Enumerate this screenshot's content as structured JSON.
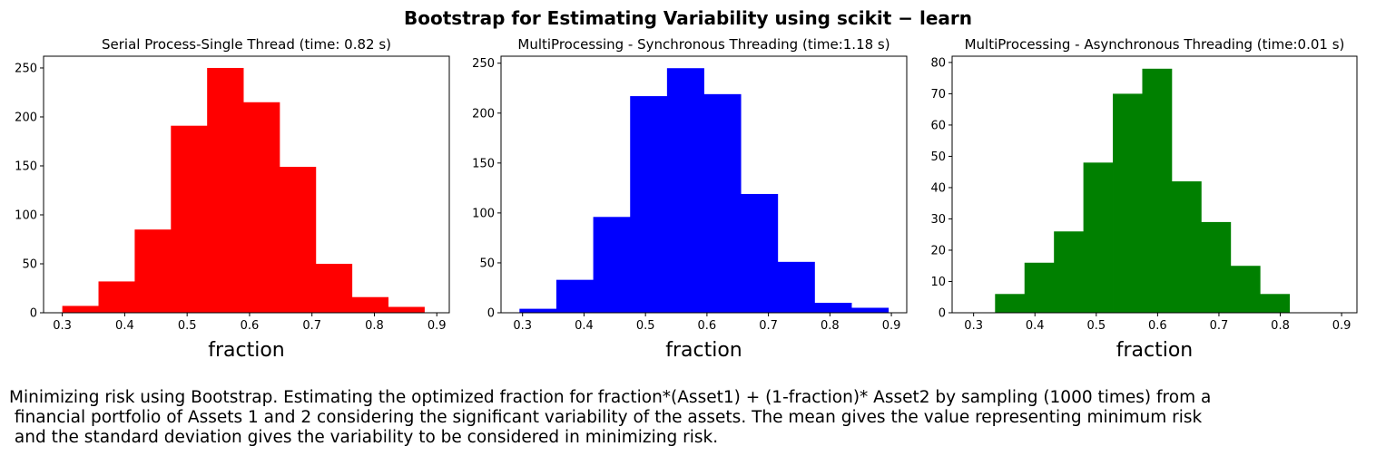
{
  "figure": {
    "suptitle": "Bootstrap for Estimating Variability using scikit − learn",
    "caption_lines": [
      "Minimizing risk using Bootstrap. Estimating the optimized fraction for fraction*(Asset1) + (1-fraction)* Asset2 by sampling (1000 times) from a",
      " financial portfolio of Assets 1 and 2 considering the significant variability of the assets. The mean gives the value representing minimum risk",
      " and the standard deviation gives the variability to be considered in minimizing risk."
    ]
  },
  "chart_data": [
    {
      "type": "bar",
      "subtype": "histogram",
      "title": "Serial Process-Single Thread (time: 0.82 s)",
      "xlabel": "fraction",
      "ylabel": "",
      "color": "#ff0000",
      "bin_edges": [
        0.3,
        0.358,
        0.416,
        0.474,
        0.532,
        0.59,
        0.648,
        0.706,
        0.764,
        0.822,
        0.88
      ],
      "values": [
        7,
        32,
        85,
        191,
        250,
        215,
        149,
        50,
        16,
        6
      ],
      "xlim": [
        0.27,
        0.92
      ],
      "ylim": [
        0,
        262
      ],
      "xticks": [
        0.3,
        0.4,
        0.5,
        0.6,
        0.7,
        0.8,
        0.9
      ],
      "xtick_labels": [
        "0.3",
        "0.4",
        "0.5",
        "0.6",
        "0.7",
        "0.8",
        "0.9"
      ],
      "yticks": [
        0,
        50,
        100,
        150,
        200,
        250
      ],
      "ytick_labels": [
        "0",
        "50",
        "100",
        "150",
        "200",
        "250"
      ],
      "grid": false,
      "legend": null
    },
    {
      "type": "bar",
      "subtype": "histogram",
      "title": "MultiProcessing - Synchronous Threading (time:1.18 s)",
      "xlabel": "fraction",
      "ylabel": "",
      "color": "#0000ff",
      "bin_edges": [
        0.295,
        0.355,
        0.415,
        0.475,
        0.535,
        0.595,
        0.655,
        0.715,
        0.775,
        0.835,
        0.895
      ],
      "values": [
        4,
        33,
        96,
        217,
        245,
        219,
        119,
        51,
        10,
        5
      ],
      "xlim": [
        0.265,
        0.925
      ],
      "ylim": [
        0,
        257
      ],
      "xticks": [
        0.3,
        0.4,
        0.5,
        0.6,
        0.7,
        0.8,
        0.9
      ],
      "xtick_labels": [
        "0.3",
        "0.4",
        "0.5",
        "0.6",
        "0.7",
        "0.8",
        "0.9"
      ],
      "yticks": [
        0,
        50,
        100,
        150,
        200,
        250
      ],
      "ytick_labels": [
        "0",
        "50",
        "100",
        "150",
        "200",
        "250"
      ],
      "grid": false,
      "legend": null
    },
    {
      "type": "bar",
      "subtype": "histogram",
      "title": "MultiProcessing - Asynchronous Threading (time:0.01 s)",
      "xlabel": "fraction",
      "ylabel": "",
      "color": "#008000",
      "bin_edges": [
        0.335,
        0.383,
        0.431,
        0.479,
        0.527,
        0.575,
        0.623,
        0.671,
        0.719,
        0.767,
        0.815
      ],
      "values": [
        6,
        16,
        26,
        48,
        70,
        78,
        42,
        29,
        15,
        6
      ],
      "xlim": [
        0.265,
        0.925
      ],
      "ylim": [
        0,
        82
      ],
      "xticks": [
        0.3,
        0.4,
        0.5,
        0.6,
        0.7,
        0.8,
        0.9
      ],
      "xtick_labels": [
        "0.3",
        "0.4",
        "0.5",
        "0.6",
        "0.7",
        "0.8",
        "0.9"
      ],
      "yticks": [
        0,
        10,
        20,
        30,
        40,
        50,
        60,
        70,
        80
      ],
      "ytick_labels": [
        "0",
        "10",
        "20",
        "30",
        "40",
        "50",
        "60",
        "70",
        "80"
      ],
      "grid": false,
      "legend": null
    }
  ]
}
